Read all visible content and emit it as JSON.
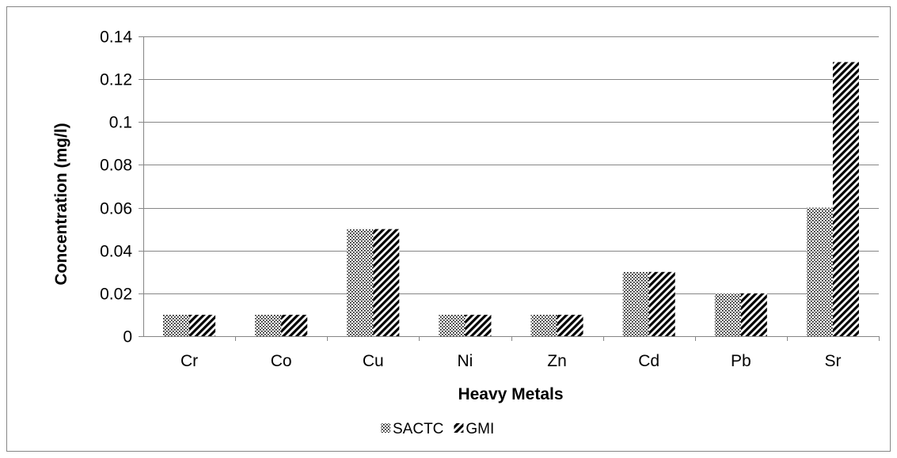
{
  "chart_data": {
    "type": "bar",
    "title": "",
    "xlabel": "Heavy Metals",
    "ylabel": "Concentration (mg/l)",
    "categories": [
      "Cr",
      "Co",
      "Cu",
      "Ni",
      "Zn",
      "Cd",
      "Pb",
      "Sr"
    ],
    "series": [
      {
        "name": "SACTC",
        "values": [
          0.01,
          0.01,
          0.05,
          0.01,
          0.01,
          0.03,
          0.02,
          0.06
        ],
        "pattern": "dots"
      },
      {
        "name": "GMI",
        "values": [
          0.01,
          0.01,
          0.05,
          0.01,
          0.01,
          0.03,
          0.02,
          0.128
        ],
        "pattern": "diagonal-stripes"
      }
    ],
    "ylim": [
      0,
      0.14
    ],
    "yticks": [
      "0",
      "0.02",
      "0.04",
      "0.06",
      "0.08",
      "0.1",
      "0.12",
      "0.14"
    ],
    "grid": true,
    "legend": "bottom",
    "colors": {
      "gridline": "#868686",
      "border": "#868686",
      "pattern_ink": "#000000"
    }
  }
}
